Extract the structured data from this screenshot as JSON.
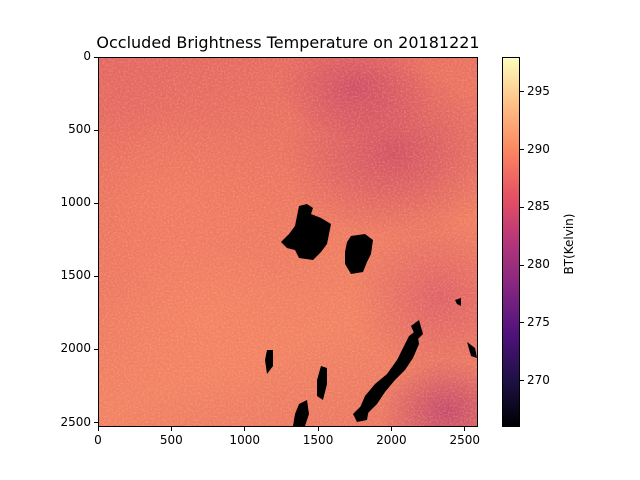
{
  "chart_data": {
    "type": "heatmap",
    "title": "Occluded Brightness Temperature on 20181221",
    "xlabel": "",
    "ylabel": "",
    "x_ticks": [
      "0",
      "500",
      "1000",
      "1500",
      "2000",
      "2500"
    ],
    "y_ticks": [
      "0",
      "500",
      "1000",
      "1500",
      "2000",
      "2500"
    ],
    "xlim": [
      0,
      2590
    ],
    "ylim": [
      2530,
      0
    ],
    "colorbar": {
      "label": "BT(Kelvin)",
      "colormap": "magma",
      "ticks": [
        "270",
        "275",
        "280",
        "285",
        "290",
        "295"
      ],
      "range": [
        266,
        298
      ]
    },
    "masked_regions_color": "#000000",
    "grid": false
  }
}
